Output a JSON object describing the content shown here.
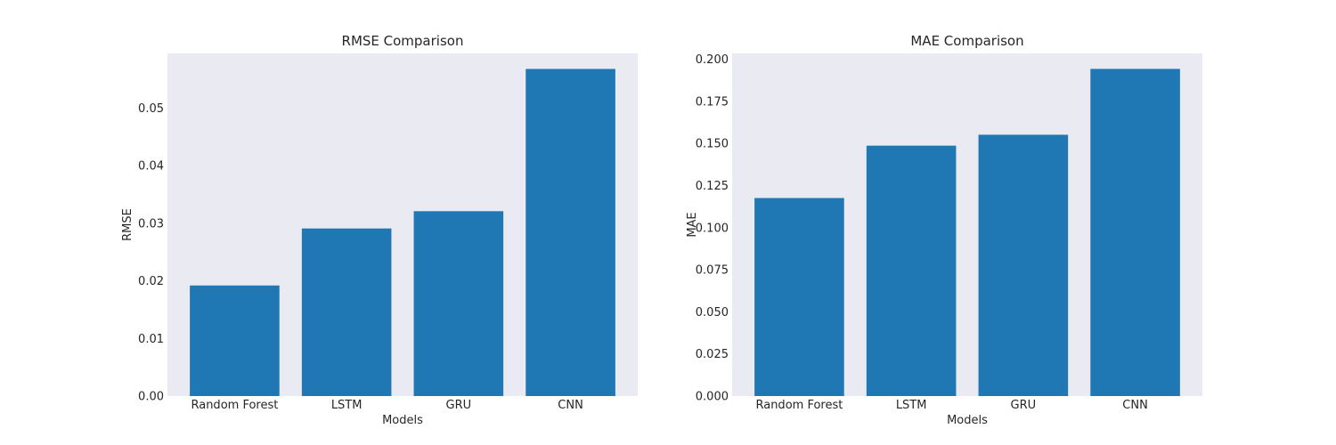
{
  "chart_data": [
    {
      "type": "bar",
      "title": "RMSE Comparison",
      "xlabel": "Models",
      "ylabel": "RMSE",
      "categories": [
        "Random Forest",
        "LSTM",
        "GRU",
        "CNN"
      ],
      "values": [
        0.0192,
        0.0291,
        0.0321,
        0.0568
      ],
      "ylim": [
        0,
        0.0595
      ],
      "yticks": [
        0.0,
        0.01,
        0.02,
        0.03,
        0.04,
        0.05
      ],
      "ytick_labels": [
        "0.00",
        "0.01",
        "0.02",
        "0.03",
        "0.04",
        "0.05"
      ],
      "grid": false,
      "bar_color": "#1f77b4",
      "plot_background": "#eaeaf2"
    },
    {
      "type": "bar",
      "title": "MAE Comparison",
      "xlabel": "Models",
      "ylabel": "MAE",
      "categories": [
        "Random Forest",
        "LSTM",
        "GRU",
        "CNN"
      ],
      "values": [
        0.1176,
        0.1487,
        0.1552,
        0.1943
      ],
      "ylim": [
        0,
        0.2035
      ],
      "yticks": [
        0.0,
        0.025,
        0.05,
        0.075,
        0.1,
        0.125,
        0.15,
        0.175,
        0.2
      ],
      "ytick_labels": [
        "0.000",
        "0.025",
        "0.050",
        "0.075",
        "0.100",
        "0.125",
        "0.150",
        "0.175",
        "0.200"
      ],
      "grid": false,
      "bar_color": "#1f77b4",
      "plot_background": "#eaeaf2"
    }
  ]
}
